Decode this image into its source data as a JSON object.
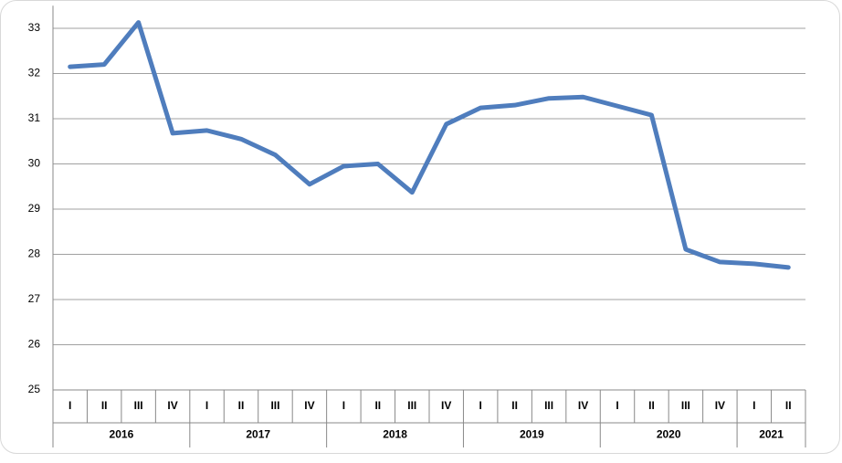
{
  "chart_data": {
    "type": "line",
    "groups": [
      {
        "label": "2016",
        "categories": [
          "I",
          "II",
          "III",
          "IV"
        ]
      },
      {
        "label": "2017",
        "categories": [
          "I",
          "II",
          "III",
          "IV"
        ]
      },
      {
        "label": "2018",
        "categories": [
          "I",
          "II",
          "III",
          "IV"
        ]
      },
      {
        "label": "2019",
        "categories": [
          "I",
          "II",
          "III",
          "IV"
        ]
      },
      {
        "label": "2020",
        "categories": [
          "I",
          "II",
          "III",
          "IV"
        ]
      },
      {
        "label": "2021",
        "categories": [
          "I",
          "II"
        ]
      }
    ],
    "values": [
      32.15,
      32.2,
      33.13,
      30.68,
      30.74,
      30.55,
      30.2,
      29.55,
      29.95,
      30.0,
      29.37,
      30.88,
      31.24,
      31.3,
      31.45,
      31.48,
      31.28,
      31.08,
      28.11,
      27.83,
      27.79,
      27.71
    ],
    "color": "#4f7dbd",
    "ylim": [
      25,
      33.5
    ],
    "yticks": [
      25,
      26,
      27,
      28,
      29,
      30,
      31,
      32,
      33
    ],
    "grid": true
  }
}
